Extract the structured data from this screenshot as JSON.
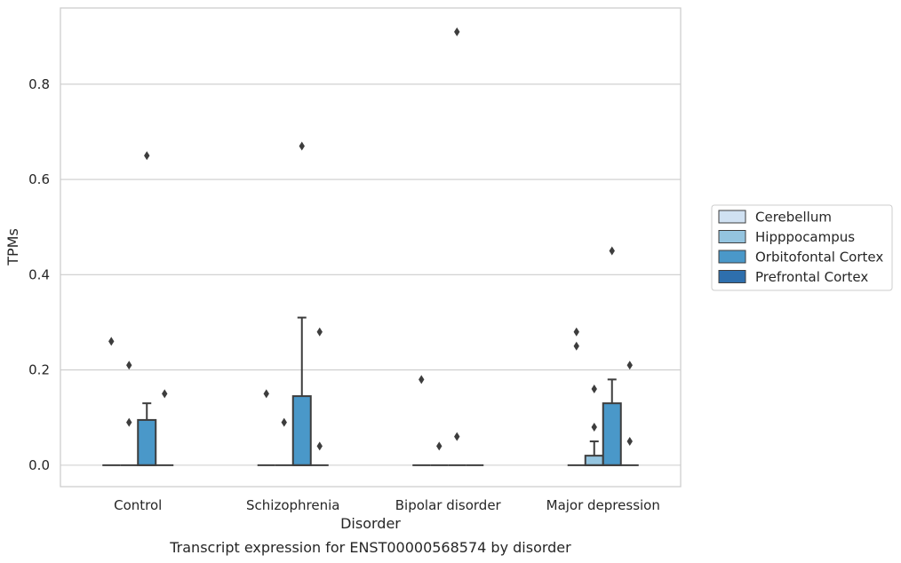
{
  "chart_data": {
    "type": "boxplot",
    "xlabel": "Disorder",
    "ylabel": "TPMs",
    "caption": "Transcript expression for ENST00000568574 by disorder",
    "categories": [
      "Control",
      "Schizophrenia",
      "Bipolar disorder",
      "Major depression"
    ],
    "ylim": [
      -0.045,
      0.96
    ],
    "yticks": [
      "0.0",
      "0.2",
      "0.4",
      "0.6",
      "0.8"
    ],
    "grid": "horizontal",
    "legend_placement": "right",
    "series": [
      {
        "name": "Cerebellum",
        "color": "#d0e1f2",
        "boxes": [
          {
            "q1": 0,
            "median": 0,
            "q3": 0,
            "whisker_low": 0,
            "whisker_high": 0,
            "outliers": [
              0.26
            ]
          },
          {
            "q1": 0,
            "median": 0,
            "q3": 0,
            "whisker_low": 0,
            "whisker_high": 0,
            "outliers": [
              0.15
            ]
          },
          {
            "q1": 0,
            "median": 0,
            "q3": 0,
            "whisker_low": 0,
            "whisker_high": 0,
            "outliers": [
              0.18
            ]
          },
          {
            "q1": 0,
            "median": 0,
            "q3": 0,
            "whisker_low": 0,
            "whisker_high": 0,
            "outliers": [
              0.28,
              0.25
            ]
          }
        ]
      },
      {
        "name": "Hipppocampus",
        "color": "#94c4df",
        "boxes": [
          {
            "q1": 0,
            "median": 0,
            "q3": 0,
            "whisker_low": 0,
            "whisker_high": 0,
            "outliers": [
              0.21,
              0.09
            ]
          },
          {
            "q1": 0,
            "median": 0,
            "q3": 0,
            "whisker_low": 0,
            "whisker_high": 0,
            "outliers": [
              0.09
            ]
          },
          {
            "q1": 0,
            "median": 0,
            "q3": 0,
            "whisker_low": 0,
            "whisker_high": 0,
            "outliers": [
              0.04
            ]
          },
          {
            "q1": 0,
            "median": 0,
            "q3": 0.02,
            "whisker_low": 0,
            "whisker_high": 0.05,
            "outliers": [
              0.16,
              0.08
            ]
          }
        ]
      },
      {
        "name": "Orbitofontal Cortex",
        "color": "#4a98c9",
        "boxes": [
          {
            "q1": 0,
            "median": 0,
            "q3": 0.095,
            "whisker_low": 0,
            "whisker_high": 0.13,
            "outliers": [
              0.65
            ]
          },
          {
            "q1": 0,
            "median": 0,
            "q3": 0.145,
            "whisker_low": 0,
            "whisker_high": 0.31,
            "outliers": [
              0.67
            ]
          },
          {
            "q1": 0,
            "median": 0,
            "q3": 0,
            "whisker_low": 0,
            "whisker_high": 0,
            "outliers": [
              0.91,
              0.06
            ]
          },
          {
            "q1": 0,
            "median": 0,
            "q3": 0.13,
            "whisker_low": 0,
            "whisker_high": 0.18,
            "outliers": [
              0.45
            ]
          }
        ]
      },
      {
        "name": "Prefrontal Cortex",
        "color": "#2e6fad",
        "boxes": [
          {
            "q1": 0,
            "median": 0,
            "q3": 0,
            "whisker_low": 0,
            "whisker_high": 0,
            "outliers": [
              0.15
            ]
          },
          {
            "q1": 0,
            "median": 0,
            "q3": 0,
            "whisker_low": 0,
            "whisker_high": 0,
            "outliers": [
              0.28,
              0.04
            ]
          },
          {
            "q1": 0,
            "median": 0,
            "q3": 0,
            "whisker_low": 0,
            "whisker_high": 0,
            "outliers": []
          },
          {
            "q1": 0,
            "median": 0,
            "q3": 0,
            "whisker_low": 0,
            "whisker_high": 0,
            "outliers": [
              0.21,
              0.05
            ]
          }
        ]
      }
    ]
  }
}
